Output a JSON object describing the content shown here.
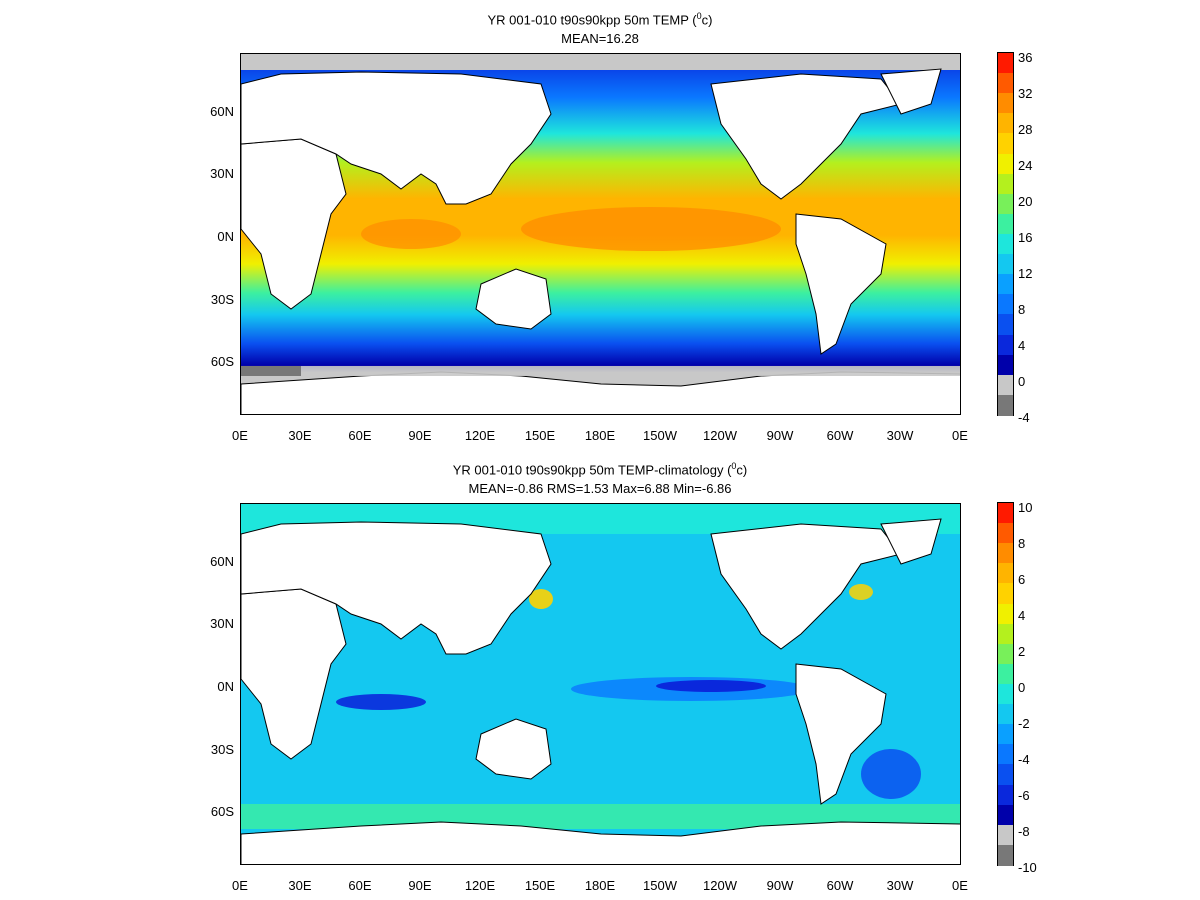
{
  "panels": [
    {
      "title_main": "YR 001-010 t90s90kpp 50m TEMP (",
      "title_sup": "0",
      "title_unit": "c)",
      "subtitle": "MEAN=16.28",
      "colorbar": {
        "labels": [
          "36",
          "32",
          "28",
          "24",
          "20",
          "16",
          "12",
          "8",
          "4",
          "0",
          "-4"
        ],
        "colors": [
          "#ff1a00",
          "#ff5a00",
          "#ff8c00",
          "#ffb400",
          "#ffd200",
          "#f0f000",
          "#b4f01e",
          "#78f05a",
          "#3cf0a0",
          "#1ee6dc",
          "#14c8f0",
          "#0aa0ff",
          "#0a78ff",
          "#0a50f0",
          "#0a28dc",
          "#0000aa",
          "#c8c8c8",
          "#787878"
        ]
      },
      "map_type": "absolute-temperature"
    },
    {
      "title_main": "YR 001-010 t90s90kpp 50m TEMP-climatology (",
      "title_sup": "0",
      "title_unit": "c)",
      "subtitle": "MEAN=-0.86   RMS=1.53   Max=6.88   Min=-6.86",
      "colorbar": {
        "labels": [
          "10",
          "8",
          "6",
          "4",
          "2",
          "0",
          "-2",
          "-4",
          "-6",
          "-8",
          "-10"
        ],
        "colors": [
          "#ff1a00",
          "#ff5a00",
          "#ff8c00",
          "#ffb400",
          "#ffd200",
          "#f0f000",
          "#b4f01e",
          "#78f05a",
          "#3cf0a0",
          "#1ee6dc",
          "#14c8f0",
          "#0aa0ff",
          "#0a78ff",
          "#0a50f0",
          "#0a28dc",
          "#0000aa",
          "#c8c8c8",
          "#787878"
        ]
      },
      "map_type": "anomaly"
    }
  ],
  "axes": {
    "y_labels": [
      "60N",
      "30N",
      "0N",
      "30S",
      "60S"
    ],
    "x_labels": [
      "0E",
      "30E",
      "60E",
      "90E",
      "120E",
      "150E",
      "180E",
      "150W",
      "120W",
      "90W",
      "60W",
      "30W",
      "0E"
    ]
  },
  "colors": {
    "land": "#ffffff",
    "coast": "#000000",
    "ice": "#c8c8c8"
  }
}
